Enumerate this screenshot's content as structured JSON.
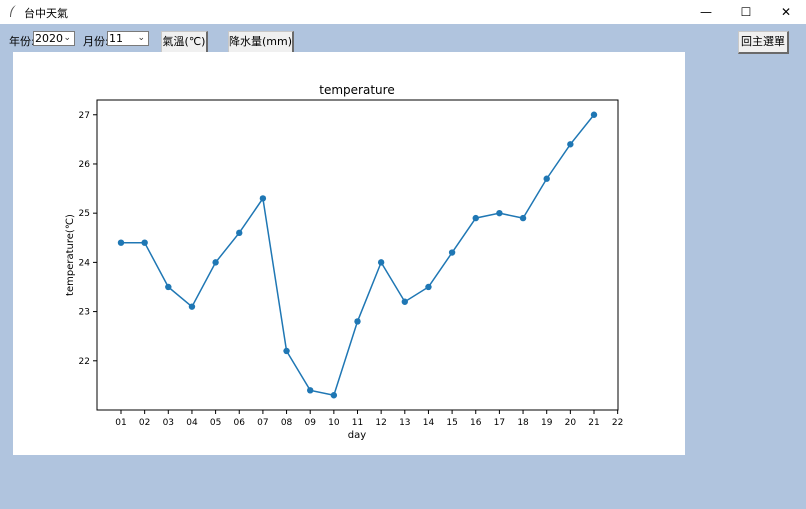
{
  "window": {
    "title": "台中天氣",
    "controls": {
      "minimize": "—",
      "maximize": "☐",
      "close": "✕"
    }
  },
  "toolbar": {
    "year_label": "年份:",
    "year_value": "2020",
    "month_label": "月份:",
    "month_value": "11",
    "tab_temperature": "氣溫(℃)",
    "tab_rainfall": "降水量(mm)",
    "back_button": "回主選單"
  },
  "chart_data": {
    "type": "line",
    "title": "temperature",
    "xlabel": "day",
    "ylabel": "temperature(℃)",
    "x": [
      "01",
      "02",
      "03",
      "04",
      "05",
      "06",
      "07",
      "08",
      "09",
      "10",
      "11",
      "12",
      "13",
      "14",
      "15",
      "16",
      "17",
      "18",
      "19",
      "20",
      "21"
    ],
    "values": [
      24.4,
      24.4,
      23.5,
      23.1,
      24.0,
      24.6,
      25.3,
      22.2,
      21.4,
      21.3,
      22.8,
      24.0,
      23.2,
      23.5,
      24.2,
      24.9,
      25.0,
      24.9,
      25.7,
      26.4,
      27.0
    ],
    "xticks": [
      "01",
      "02",
      "03",
      "04",
      "05",
      "06",
      "07",
      "08",
      "09",
      "10",
      "11",
      "12",
      "13",
      "14",
      "15",
      "16",
      "17",
      "18",
      "19",
      "20",
      "21",
      "22"
    ],
    "yticks": [
      22,
      23,
      24,
      25,
      26,
      27
    ],
    "ylim": [
      21.0,
      27.3
    ],
    "color": "#1f77b4",
    "grid": false,
    "markers": true
  }
}
